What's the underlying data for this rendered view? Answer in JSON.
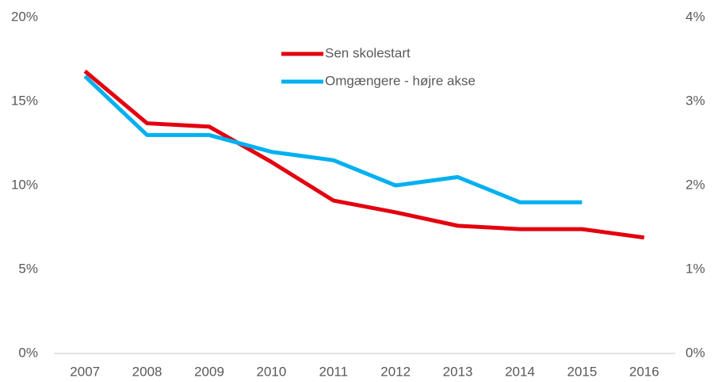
{
  "chart_data": {
    "type": "line",
    "categories": [
      "2007",
      "2008",
      "2009",
      "2010",
      "2011",
      "2012",
      "2013",
      "2014",
      "2015",
      "2016"
    ],
    "series": [
      {
        "name": "Sen skolestart",
        "color": "#e3000f",
        "values": [
          16.8,
          13.7,
          13.5,
          11.4,
          9.1,
          8.4,
          7.6,
          7.4,
          7.4,
          6.9
        ]
      },
      {
        "name": "Omgængere - højre akse",
        "color": "#00b0f0",
        "axis": "y2",
        "values": [
          3.3,
          2.6,
          2.6,
          2.4,
          2.3,
          2.0,
          2.1,
          1.8,
          1.8,
          null
        ]
      }
    ],
    "ylim": [
      0,
      20
    ],
    "yticks": [
      {
        "value": 0,
        "label": "0%"
      },
      {
        "value": 5,
        "label": "5%"
      },
      {
        "value": 10,
        "label": "10%"
      },
      {
        "value": 15,
        "label": "15%"
      },
      {
        "value": 20,
        "label": "20%"
      }
    ],
    "y2lim": [
      0,
      4
    ],
    "y2ticks": [
      {
        "value": 0,
        "label": "0%"
      },
      {
        "value": 1,
        "label": "1%"
      },
      {
        "value": 2,
        "label": "2%"
      },
      {
        "value": 3,
        "label": "3%"
      },
      {
        "value": 4,
        "label": "4%"
      }
    ],
    "legend": "top"
  }
}
